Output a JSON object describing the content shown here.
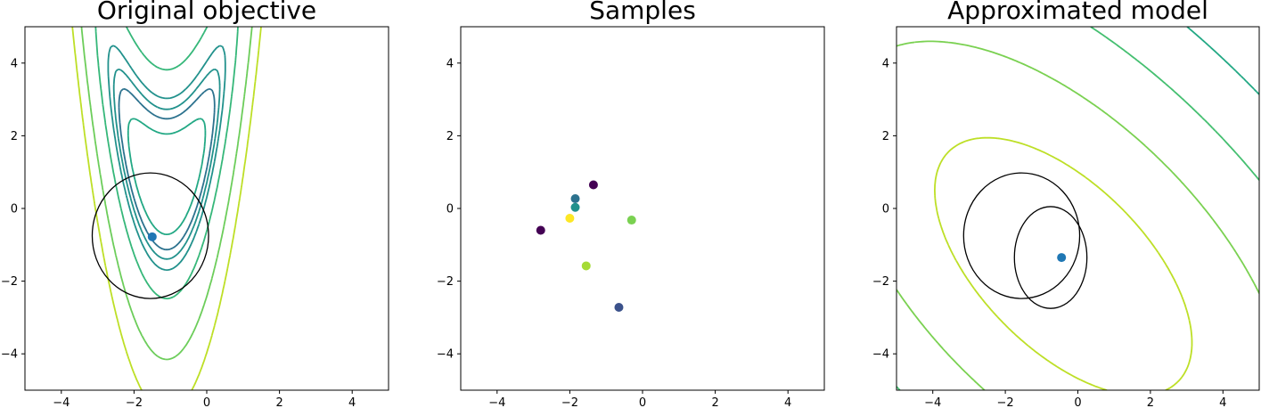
{
  "chart_data": [
    {
      "type": "contour",
      "title": "Original objective",
      "xlim": [
        -5,
        5
      ],
      "ylim": [
        -5,
        5
      ],
      "xticks": [
        -4,
        -2,
        0,
        2,
        4
      ],
      "yticks": [
        -4,
        -2,
        0,
        2,
        4
      ],
      "tick_labels": [
        "−4",
        "−2",
        "0",
        "2",
        "4"
      ],
      "function": "rosenbrock-like valley, minimum near (-1.1, 0.8)",
      "contours": [
        {
          "level": "low",
          "color": "#2a9a8a",
          "style": "solid"
        },
        {
          "level": "mid",
          "color": "#2b7e8e",
          "style": "dashed"
        },
        {
          "level": "high",
          "color": "#6ccd5a",
          "style": "solid"
        },
        {
          "level": "highest",
          "color": "#bade28",
          "style": "solid"
        }
      ],
      "trust_region": {
        "center": [
          -1.55,
          -0.75
        ],
        "radius": 1.6,
        "color": "#000000"
      },
      "current_point": {
        "x": -1.5,
        "y": -0.78,
        "color": "#1f77b4"
      }
    },
    {
      "type": "scatter",
      "title": "Samples",
      "xlim": [
        -5,
        5
      ],
      "ylim": [
        -5,
        5
      ],
      "xticks": [
        -4,
        -2,
        0,
        2,
        4
      ],
      "yticks": [
        -4,
        -2,
        0,
        2,
        4
      ],
      "tick_labels": [
        "−4",
        "−2",
        "0",
        "2",
        "4"
      ],
      "points": [
        {
          "x": -1.35,
          "y": 0.65,
          "color": "#440154"
        },
        {
          "x": -2.8,
          "y": -0.6,
          "color": "#440154"
        },
        {
          "x": -1.85,
          "y": 0.27,
          "color": "#2c728e"
        },
        {
          "x": -1.85,
          "y": 0.03,
          "color": "#21918c"
        },
        {
          "x": -2.0,
          "y": -0.27,
          "color": "#fde725"
        },
        {
          "x": -0.3,
          "y": -0.32,
          "color": "#7ad151"
        },
        {
          "x": -1.55,
          "y": -1.58,
          "color": "#a5db36"
        },
        {
          "x": -0.65,
          "y": -2.72,
          "color": "#3b528b"
        }
      ]
    },
    {
      "type": "contour",
      "title": "Approximated model",
      "xlim": [
        -5,
        5
      ],
      "ylim": [
        -5,
        5
      ],
      "xticks": [
        -4,
        -2,
        0,
        2,
        4
      ],
      "yticks": [
        -4,
        -2,
        0,
        2,
        4
      ],
      "tick_labels": [
        "−4",
        "−2",
        "0",
        "2",
        "4"
      ],
      "function": "quadratic model, elliptic contours centered near (-0.6, -1.5)",
      "contour_colors": [
        "#440154",
        "#31688e",
        "#26828e",
        "#22a884",
        "#44bf70",
        "#7ad151",
        "#bddf26"
      ],
      "trust_regions": [
        {
          "center": [
            -1.55,
            -0.75
          ],
          "radius": 1.6,
          "color": "#000000"
        },
        {
          "center": [
            -0.75,
            -1.35
          ],
          "rx": 1.0,
          "ry": 1.4,
          "color": "#000000"
        }
      ],
      "current_point": {
        "x": -0.45,
        "y": -1.35,
        "color": "#1f77b4"
      }
    }
  ]
}
